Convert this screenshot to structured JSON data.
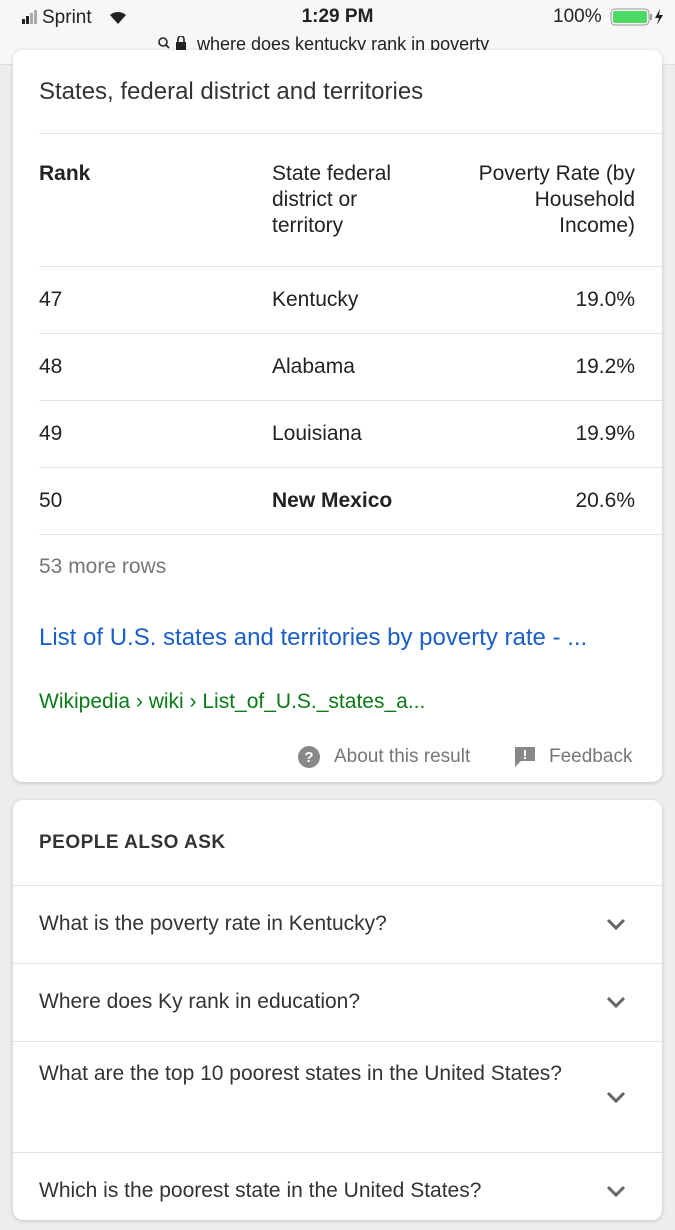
{
  "status_bar": {
    "carrier": "Sprint",
    "time": "1:29 PM",
    "battery": "100%",
    "url": "where does kentucky rank in poverty"
  },
  "result_card": {
    "heading": "States, federal district and territories",
    "table": {
      "header": [
        "Rank",
        "State federal district or territory",
        "Poverty Rate (by Household Income)"
      ],
      "rows": [
        [
          "47",
          "Kentucky",
          "19.0%"
        ],
        [
          "48",
          "Alabama",
          "19.2%"
        ],
        [
          "49",
          "Louisiana",
          "19.9%"
        ],
        [
          "50",
          "New Mexico",
          "20.6%"
        ]
      ]
    },
    "more_rows": "53 more rows",
    "link_title": "List of U.S. states and territories by poverty rate - ...",
    "breadcrumb": "Wikipedia › wiki › List_of_U.S._states_a...",
    "about": "About this result",
    "feedback": "Feedback"
  },
  "people_also_ask": {
    "title": "PEOPLE ALSO ASK",
    "questions": [
      "What is the poverty rate in Kentucky?",
      "Where does Ky rank in education?",
      "What are the top 10 poorest states in the United States?",
      "Which is the poorest state in the United States?"
    ]
  }
}
